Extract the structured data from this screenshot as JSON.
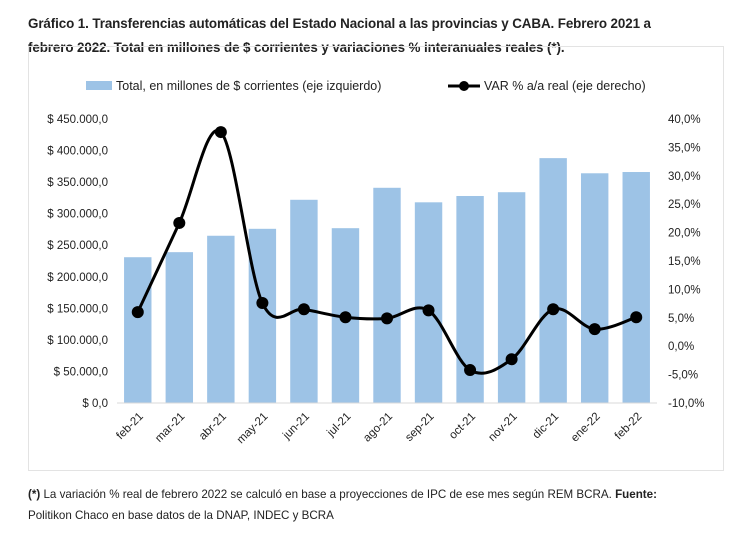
{
  "title_line1": "Gráfico 1. Transferencias automáticas del Estado Nacional a las provincias y CABA. Febrero 2021 a",
  "title_line2": "febrero 2022. Total en millones de $ corrientes y variaciones % interanuales reales (*).",
  "colors": {
    "bar": "#9dc3e6",
    "line": "#000000"
  },
  "chart_data": {
    "type": "bar+line",
    "categories": [
      "feb-21",
      "mar-21",
      "abr-21",
      "may-21",
      "jun-21",
      "jul-21",
      "ago-21",
      "sep-21",
      "oct-21",
      "nov-21",
      "dic-21",
      "ene-22",
      "feb-22"
    ],
    "series": [
      {
        "name": "Total, en millones de $ corrientes (eje izquierdo)",
        "type": "bar",
        "axis": "left",
        "values": [
          231000,
          239000,
          265000,
          276000,
          322000,
          277000,
          341000,
          318000,
          328000,
          334000,
          388000,
          364000,
          366000
        ]
      },
      {
        "name": "VAR % a/a real (eje derecho)",
        "type": "line",
        "axis": "right",
        "values": [
          6.0,
          21.7,
          37.7,
          7.6,
          6.5,
          5.1,
          4.9,
          6.3,
          -4.2,
          -2.3,
          6.5,
          3.0,
          5.1
        ]
      }
    ],
    "ylim_left": [
      0,
      450000
    ],
    "ylim_right": [
      -10,
      40
    ],
    "yticks_left": [
      "$ 0,0",
      "$ 50.000,0",
      "$ 100.000,0",
      "$ 150.000,0",
      "$ 200.000,0",
      "$ 250.000,0",
      "$ 300.000,0",
      "$ 350.000,0",
      "$ 400.000,0",
      "$ 450.000,0"
    ],
    "yticks_right": [
      "-10,0%",
      "-5,0%",
      "0,0%",
      "5,0%",
      "10,0%",
      "15,0%",
      "20,0%",
      "25,0%",
      "30,0%",
      "35,0%",
      "40,0%"
    ],
    "grid": false,
    "legend": "top"
  },
  "footnote": {
    "mark": "(*)",
    "text": " La variación % real de febrero 2022 se calculó en base a proyecciones de IPC de ese mes según REM BCRA. ",
    "source_label": "Fuente:",
    "source_text": "Politikon Chaco en base datos de la DNAP, INDEC y BCRA"
  }
}
